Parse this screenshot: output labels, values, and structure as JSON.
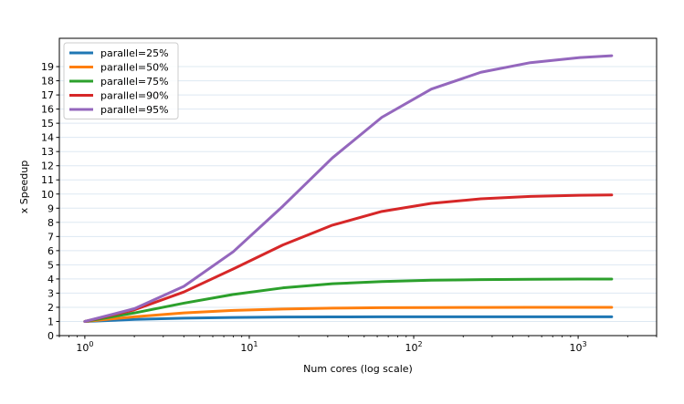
{
  "chart_data": {
    "type": "line",
    "xlabel": "Num cores (log scale)",
    "ylabel": "x Speedup",
    "x_scale": "log",
    "xlim": [
      0.7,
      3000
    ],
    "ylim": [
      0,
      21
    ],
    "grid": "horizontal",
    "legend_position": "top-left",
    "x_ticks": [
      {
        "value": 1,
        "base": "10",
        "exp": "0"
      },
      {
        "value": 10,
        "base": "10",
        "exp": "1"
      },
      {
        "value": 100,
        "base": "10",
        "exp": "2"
      },
      {
        "value": 1000,
        "base": "10",
        "exp": "3"
      }
    ],
    "y_ticks": [
      0,
      1,
      2,
      3,
      4,
      5,
      6,
      7,
      8,
      9,
      10,
      11,
      12,
      13,
      14,
      15,
      16,
      17,
      18,
      19
    ],
    "x": [
      1,
      2,
      4,
      8,
      16,
      32,
      64,
      128,
      256,
      512,
      1024,
      1600
    ],
    "series": [
      {
        "name": "parallel=25%",
        "color": "#1f77b4",
        "values": [
          1.0,
          1.14,
          1.23,
          1.28,
          1.31,
          1.32,
          1.33,
          1.33,
          1.33,
          1.33,
          1.33,
          1.33
        ]
      },
      {
        "name": "parallel=50%",
        "color": "#ff7f0e",
        "values": [
          1.0,
          1.33,
          1.6,
          1.78,
          1.88,
          1.94,
          1.97,
          1.98,
          1.99,
          2.0,
          2.0,
          2.0
        ]
      },
      {
        "name": "parallel=75%",
        "color": "#2ca02c",
        "values": [
          1.0,
          1.6,
          2.29,
          2.91,
          3.37,
          3.66,
          3.82,
          3.91,
          3.95,
          3.98,
          3.99,
          3.99
        ]
      },
      {
        "name": "parallel=90%",
        "color": "#d62728",
        "values": [
          1.0,
          1.82,
          3.08,
          4.71,
          6.4,
          7.8,
          8.77,
          9.34,
          9.66,
          9.83,
          9.91,
          9.94
        ]
      },
      {
        "name": "parallel=95%",
        "color": "#9467bd",
        "values": [
          1.0,
          1.9,
          3.48,
          5.93,
          9.14,
          12.55,
          15.42,
          17.41,
          18.6,
          19.28,
          19.64,
          19.77
        ]
      }
    ]
  }
}
